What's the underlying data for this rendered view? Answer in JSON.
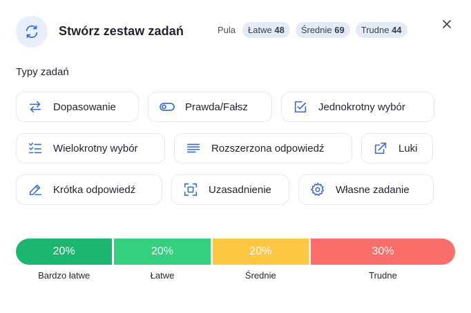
{
  "header": {
    "title": "Stwórz zestaw zadań",
    "pool_label": "Pula",
    "pool": [
      {
        "label": "Łatwe",
        "count": "48"
      },
      {
        "label": "Średnie",
        "count": "69"
      },
      {
        "label": "Trudne",
        "count": "44"
      }
    ]
  },
  "types": {
    "section_title": "Typy zadań",
    "items": [
      {
        "label": "Dopasowanie",
        "icon": "arrows-swap-icon"
      },
      {
        "label": "Prawda/Fałsz",
        "icon": "toggle-icon"
      },
      {
        "label": "Jednokrotny wybór",
        "icon": "checkbox-check-icon"
      },
      {
        "label": "Wielokrotny wybór",
        "icon": "checklist-icon"
      },
      {
        "label": "Rozszerzona odpowiedź",
        "icon": "text-lines-icon"
      },
      {
        "label": "Luki",
        "icon": "arrow-out-box-icon"
      },
      {
        "label": "Krótka odpowiedź",
        "icon": "pencil-icon"
      },
      {
        "label": "Uzasadnienie",
        "icon": "focus-frame-icon"
      },
      {
        "label": "Własne zadanie",
        "icon": "gear-icon"
      }
    ]
  },
  "distribution": {
    "segments": [
      {
        "percent": "20%",
        "label": "Bardzo łatwe",
        "color": "#1bb76e",
        "share": 0.2
      },
      {
        "percent": "20%",
        "label": "Łatwe",
        "color": "#34d07f",
        "share": 0.2
      },
      {
        "percent": "20%",
        "label": "Średnie",
        "color": "#fcc844",
        "share": 0.2
      },
      {
        "percent": "30%",
        "label": "Trudne",
        "color": "#f96e6a",
        "share": 0.3
      }
    ]
  },
  "colors": {
    "accent": "#3b6fd6",
    "icon_bg": "#e8eefb",
    "badge_bg": "#e4eaf6"
  }
}
